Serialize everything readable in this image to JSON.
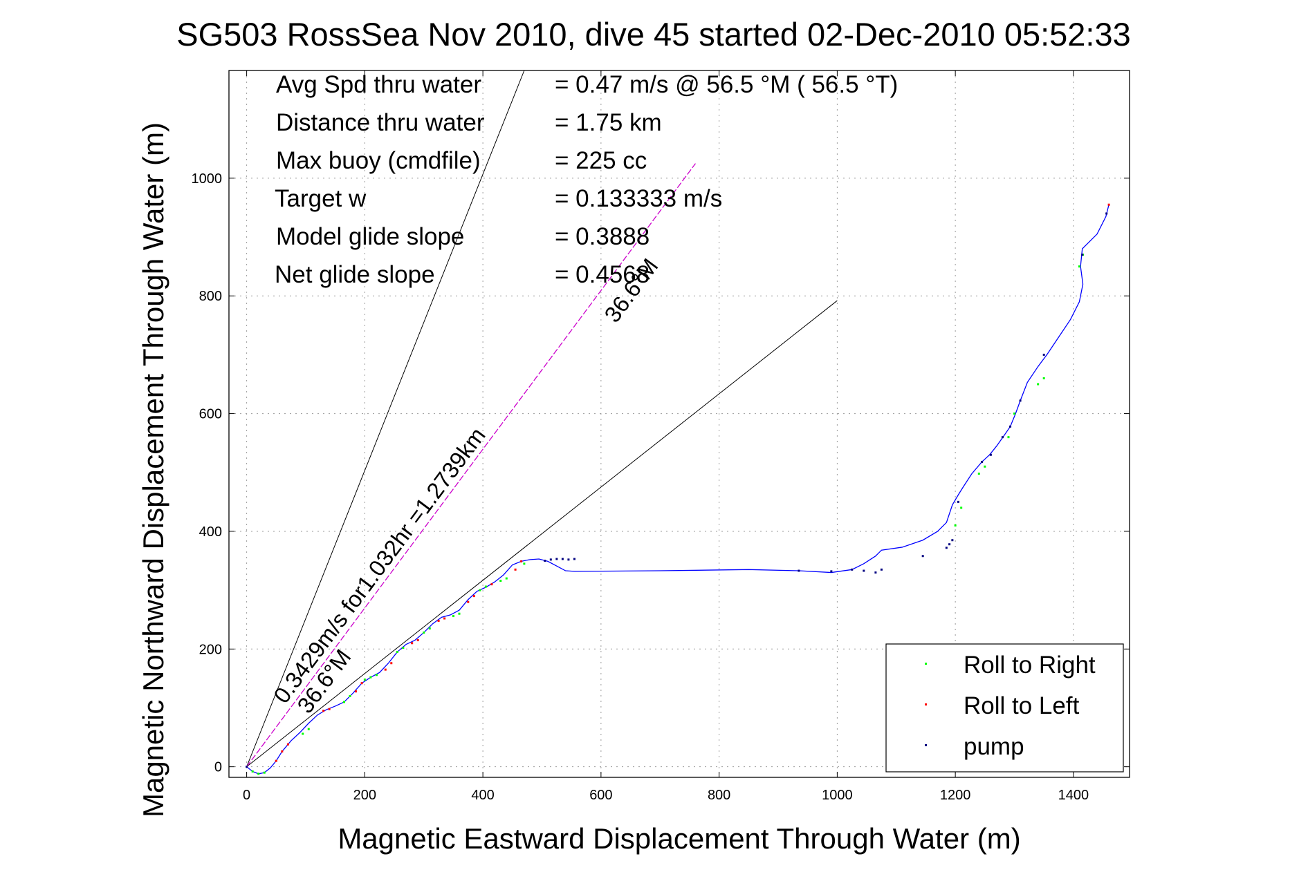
{
  "chart_data": {
    "type": "line",
    "title": "SG503 RossSea Nov 2010, dive 45 started 02-Dec-2010 05:52:33",
    "xlabel": "Magnetic Eastward Displacement Through Water (m)",
    "ylabel": "Magnetic Northward Displacement Through Water (m)",
    "xlim": [
      -30,
      1495
    ],
    "ylim": [
      -18,
      1183
    ],
    "xticks": [
      0,
      200,
      400,
      600,
      800,
      1000,
      1200,
      1400
    ],
    "yticks": [
      0,
      200,
      400,
      600,
      800,
      1000
    ],
    "grid": true,
    "legend_position": "bottom-right",
    "stats": [
      {
        "label": "Avg Spd thru water",
        "value": "=  0.47 m/s @  56.5 °M ( 56.5 °T)"
      },
      {
        "label": "Distance thru water",
        "value": "=  1.75 km"
      },
      {
        "label": "Max buoy (cmdfile)",
        "value": "= 225 cc"
      },
      {
        "label": "Target w",
        "value": "= 0.133333 m/s"
      },
      {
        "label": "Model glide slope",
        "value": "= 0.3888"
      },
      {
        "label": "Net glide slope",
        "value": "= 0.4568"
      }
    ],
    "reference_lines": [
      {
        "name": "upper-bound",
        "x": [
          0,
          470
        ],
        "y": [
          0,
          1183
        ],
        "color": "#000000"
      },
      {
        "name": "lower-bound",
        "x": [
          0,
          1000
        ],
        "y": [
          0,
          792
        ],
        "color": "#000000"
      },
      {
        "name": "course-line",
        "x": [
          0,
          760
        ],
        "y": [
          0,
          1025
        ],
        "color": "#cc00cc"
      }
    ],
    "annotations": [
      {
        "name": "course-annotation",
        "text": "0.3429m/s for1.032hr =1.2739km",
        "x": 65,
        "y": 105,
        "angle": -53.3
      },
      {
        "name": "heading-annotation-start",
        "text": "36.6°M",
        "x": 105,
        "y": 88,
        "angle": -53.3
      },
      {
        "name": "heading-annotation-end",
        "text": "36.6°M",
        "x": 625,
        "y": 752,
        "angle": -53.3
      }
    ],
    "series": [
      {
        "name": "track",
        "color": "#0000ff",
        "x": [
          0,
          10,
          20,
          30,
          40,
          50,
          60,
          75,
          90,
          105,
          120,
          135,
          150,
          165,
          180,
          195,
          210,
          225,
          240,
          255,
          270,
          285,
          300,
          315,
          330,
          345,
          360,
          375,
          390,
          405,
          420,
          435,
          450,
          465,
          480,
          495,
          510,
          525,
          540,
          555,
          700,
          850,
          935,
          990,
          1025,
          1045,
          1065,
          1075,
          1110,
          1145,
          1170,
          1185,
          1195,
          1205,
          1215,
          1228,
          1245,
          1258,
          1270,
          1282,
          1293,
          1302,
          1310,
          1322,
          1340,
          1355,
          1375,
          1395,
          1410,
          1416,
          1412,
          1415,
          1440,
          1455,
          1460
        ],
        "y": [
          0,
          -8,
          -12,
          -10,
          -2,
          10,
          26,
          44,
          58,
          74,
          88,
          97,
          103,
          110,
          125,
          142,
          152,
          160,
          176,
          195,
          208,
          215,
          228,
          243,
          254,
          258,
          266,
          284,
          298,
          305,
          314,
          326,
          343,
          349,
          352,
          353,
          349,
          341,
          333,
          332,
          333,
          335,
          333,
          330,
          335,
          345,
          358,
          368,
          373,
          385,
          400,
          415,
          445,
          462,
          478,
          498,
          518,
          530,
          545,
          562,
          578,
          600,
          622,
          653,
          680,
          700,
          730,
          760,
          790,
          820,
          850,
          880,
          905,
          935,
          955
        ]
      },
      {
        "name": "Roll to Right",
        "color": "#00ff00",
        "x": [
          10,
          20,
          30,
          95,
          105,
          165,
          175,
          210,
          220,
          255,
          265,
          300,
          310,
          350,
          360,
          395,
          405,
          430,
          440,
          470,
          200,
          1200,
          1210,
          1240,
          1250,
          1290,
          1300,
          1340,
          1350,
          1410,
          1416
        ],
        "y": [
          -8,
          -12,
          -10,
          56,
          64,
          110,
          120,
          152,
          156,
          195,
          202,
          228,
          235,
          256,
          260,
          300,
          306,
          316,
          320,
          345,
          148,
          410,
          440,
          498,
          510,
          560,
          600,
          650,
          660,
          850,
          870
        ]
      },
      {
        "name": "Roll to Left",
        "color": "#ff0000",
        "x": [
          50,
          60,
          70,
          130,
          140,
          185,
          195,
          235,
          245,
          280,
          290,
          325,
          335,
          375,
          385,
          415,
          455,
          465,
          1460
        ],
        "y": [
          10,
          26,
          38,
          95,
          98,
          128,
          142,
          165,
          176,
          210,
          215,
          248,
          252,
          280,
          290,
          310,
          335,
          349,
          955
        ]
      },
      {
        "name": "pump",
        "color": "#000080",
        "x": [
          0,
          505,
          515,
          525,
          535,
          545,
          555,
          935,
          990,
          1025,
          1045,
          1065,
          1075,
          1145,
          1185,
          1190,
          1195,
          1205,
          1245,
          1260,
          1280,
          1293,
          1310,
          1350,
          1415,
          1456
        ],
        "y": [
          0,
          350,
          352,
          353,
          353,
          352,
          353,
          333,
          332,
          335,
          333,
          330,
          335,
          358,
          372,
          378,
          385,
          450,
          518,
          530,
          560,
          578,
          622,
          700,
          870,
          940
        ]
      }
    ],
    "legend": [
      {
        "label": "Roll to Right",
        "color": "#00ff00"
      },
      {
        "label": "Roll to Left",
        "color": "#ff0000"
      },
      {
        "label": "pump",
        "color": "#000080"
      }
    ]
  }
}
